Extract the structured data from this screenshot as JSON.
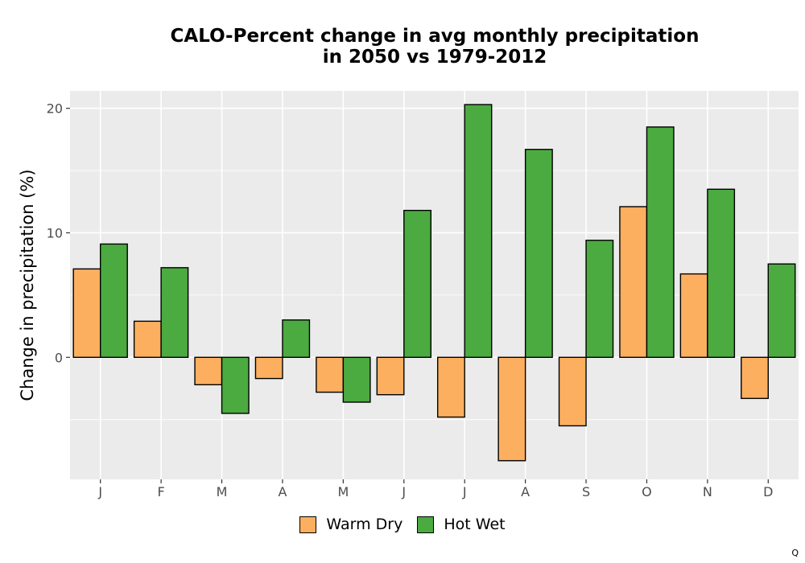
{
  "chart_data": {
    "type": "bar",
    "title_lines": [
      "CALO-Percent change in avg monthly precipitation",
      "in 2050 vs 1979-2012"
    ],
    "xlabel": "",
    "ylabel": "Change in precipitation (%)",
    "categories": [
      "J",
      "F",
      "M",
      "A",
      "M",
      "J",
      "J",
      "A",
      "S",
      "O",
      "N",
      "D"
    ],
    "series": [
      {
        "name": "Warm Dry",
        "color": "#FDAF60",
        "values": [
          7.1,
          2.9,
          -2.2,
          -1.7,
          -2.8,
          -3.0,
          -4.8,
          -8.3,
          -5.5,
          12.1,
          6.7,
          -3.3
        ]
      },
      {
        "name": "Hot Wet",
        "color": "#4BAA40",
        "values": [
          9.1,
          7.2,
          -4.5,
          3.0,
          -3.6,
          11.8,
          20.3,
          16.7,
          9.4,
          18.5,
          13.5,
          7.5
        ]
      }
    ],
    "yticks": [
      0,
      10,
      20
    ],
    "ylim": [
      -9.8,
      21.4
    ],
    "grid": true,
    "legend_position": "bottom",
    "panel_color": "#EBEBEB",
    "corner_mark": "Q"
  }
}
